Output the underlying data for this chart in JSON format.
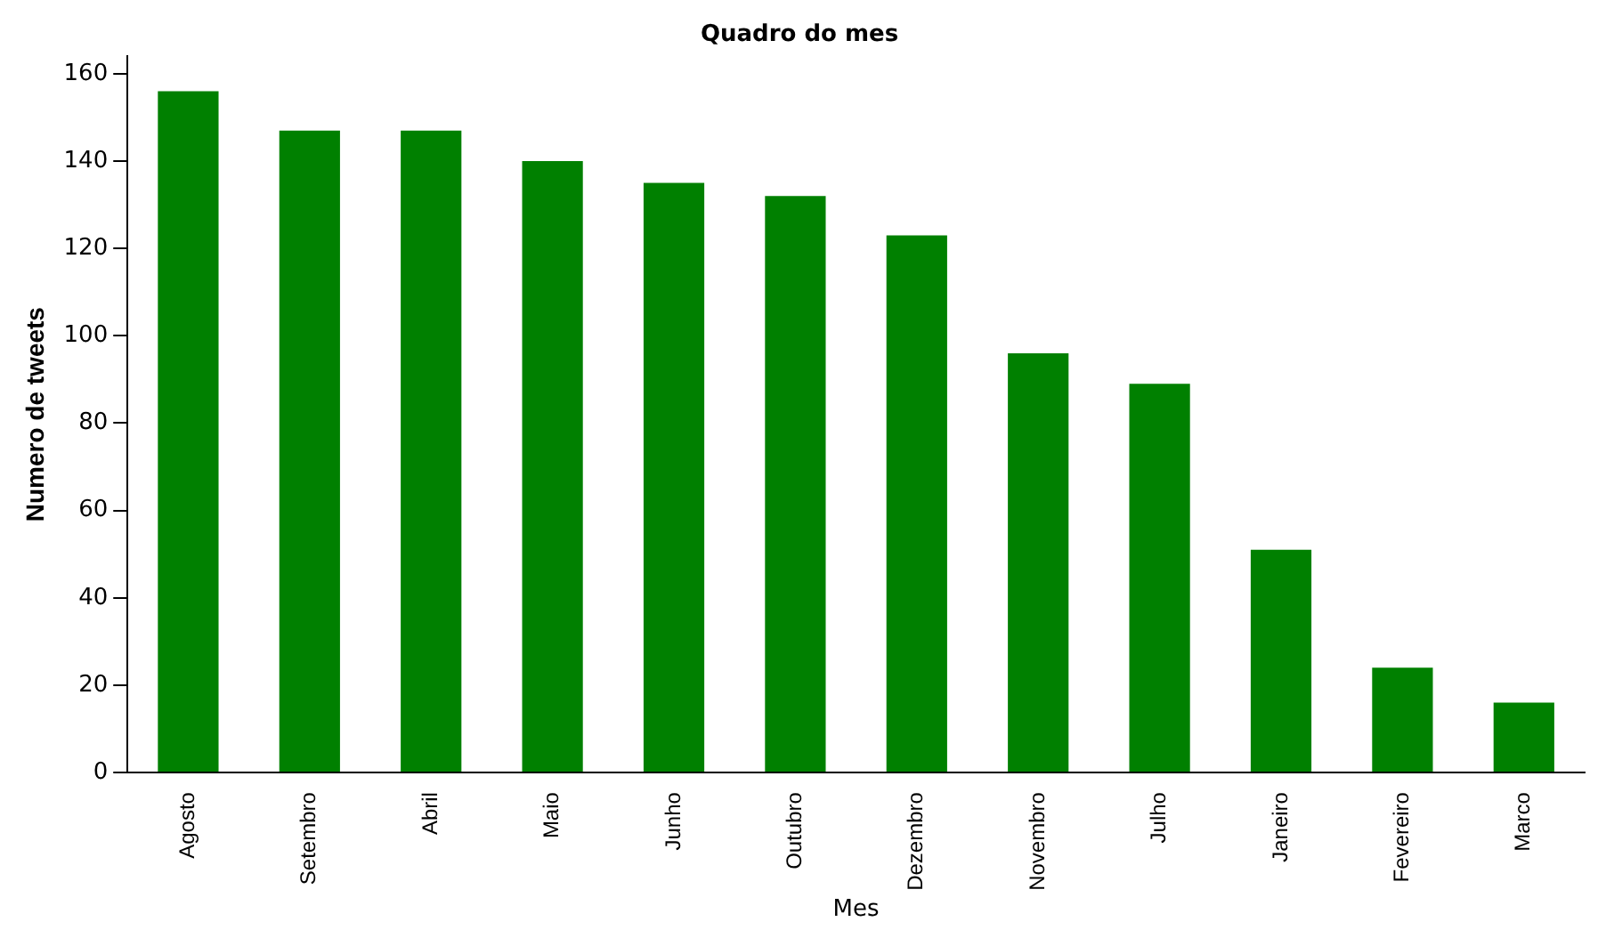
{
  "chart_data": {
    "type": "bar",
    "title": "Quadro do mes",
    "xlabel": "Mes",
    "ylabel": "Numero de tweets",
    "categories": [
      "Agosto",
      "Setembro",
      "Abril",
      "Maio",
      "Junho",
      "Outubro",
      "Dezembro",
      "Novembro",
      "Julho",
      "Janeiro",
      "Fevereiro",
      "Marco"
    ],
    "values": [
      156,
      147,
      147,
      140,
      135,
      132,
      123,
      96,
      89,
      51,
      24,
      16
    ],
    "color": "#008000",
    "ylim": [
      0,
      164
    ],
    "yticks": [
      0,
      20,
      40,
      60,
      80,
      100,
      120,
      140,
      160
    ],
    "grid": false,
    "legend": false
  }
}
